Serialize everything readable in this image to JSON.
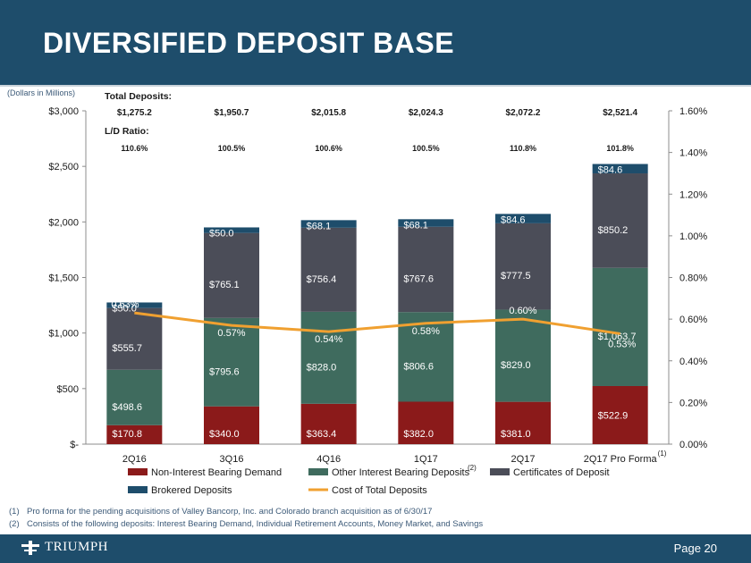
{
  "title": "DIVERSIFIED DEPOSIT BASE",
  "logo_text": "TRIUMPH",
  "page_number": "Page 20",
  "footnotes": [
    {
      "num": "(1)",
      "text": "Pro forma for the pending acquisitions of Valley Bancorp, Inc. and  Colorado branch acquisition as of 6/30/17"
    },
    {
      "num": "(2)",
      "text": "Consists of the following deposits: Interest Bearing Demand, Individual Retirement Accounts, Money Market, and Savings"
    }
  ],
  "colors": {
    "header": "#1e4d6b",
    "non_interest": "#8b1a1a",
    "other_interest": "#3f6b5e",
    "certificates": "#4b4d58",
    "brokered": "#1e4d6b",
    "cost": "#f0a030"
  },
  "chart_data": {
    "type": "bar",
    "stacked": true,
    "units_note": "(Dollars in Millions)",
    "categories": [
      "2Q16",
      "3Q16",
      "4Q16",
      "1Q17",
      "2Q17",
      "2Q17 Pro Forma"
    ],
    "category_superscripts": [
      "",
      "",
      "",
      "",
      "",
      "(1)"
    ],
    "ylim": [
      0,
      3000
    ],
    "yticks": [
      0,
      500,
      1000,
      1500,
      2000,
      2500,
      3000
    ],
    "ytick_labels": [
      "$-",
      "$500",
      "$1,000",
      "$1,500",
      "$2,000",
      "$2,500",
      "$3,000"
    ],
    "y2lim": [
      0,
      0.016
    ],
    "y2ticks": [
      0,
      0.002,
      0.004,
      0.006,
      0.008,
      0.01,
      0.012,
      0.014,
      0.016
    ],
    "y2tick_labels": [
      "0.00%",
      "0.20%",
      "0.40%",
      "0.60%",
      "0.80%",
      "1.00%",
      "1.20%",
      "1.40%",
      "1.60%"
    ],
    "series": [
      {
        "name": "Non-Interest Bearing Demand",
        "superscript": "",
        "color_key": "non_interest",
        "values": [
          170.8,
          340.0,
          363.4,
          382.0,
          381.0,
          522.9
        ],
        "labels": [
          "$170.8",
          "$340.0",
          "$363.4",
          "$382.0",
          "$381.0",
          "$522.9"
        ]
      },
      {
        "name": "Other Interest Bearing Deposits",
        "superscript": "(2)",
        "color_key": "other_interest",
        "values": [
          498.6,
          795.6,
          828.0,
          806.6,
          829.0,
          1063.7
        ],
        "labels": [
          "$498.6",
          "$795.6",
          "$828.0",
          "$806.6",
          "$829.0",
          "$1,063.7"
        ]
      },
      {
        "name": "Certificates of Deposit",
        "superscript": "",
        "color_key": "certificates",
        "values": [
          555.7,
          765.1,
          756.4,
          767.6,
          777.5,
          850.2
        ],
        "labels": [
          "$555.7",
          "$765.1",
          "$756.4",
          "$767.6",
          "$777.5",
          "$850.2"
        ]
      },
      {
        "name": "Brokered Deposits",
        "superscript": "",
        "color_key": "brokered",
        "values": [
          50.0,
          50.0,
          68.1,
          68.1,
          84.6,
          84.6
        ],
        "labels": [
          "$50.0",
          "$50.0",
          "$68.1",
          "$68.1",
          "$84.6",
          "$84.6"
        ]
      }
    ],
    "line_series": {
      "name": "Cost of Total Deposits",
      "color_key": "cost",
      "values": [
        0.0063,
        0.0057,
        0.0054,
        0.0058,
        0.006,
        0.0053
      ],
      "labels": [
        "0.63%",
        "0.57%",
        "0.54%",
        "0.58%",
        "0.60%",
        "0.53%"
      ]
    },
    "total_deposits": {
      "heading": "Total Deposits:",
      "values": [
        "$1,275.2",
        "$1,950.7",
        "$2,015.8",
        "$2,024.3",
        "$2,072.2",
        "$2,521.4"
      ]
    },
    "ld_ratio": {
      "heading": "L/D Ratio:",
      "values": [
        "110.6%",
        "100.5%",
        "100.6%",
        "100.5%",
        "110.8%",
        "101.8%"
      ]
    }
  }
}
